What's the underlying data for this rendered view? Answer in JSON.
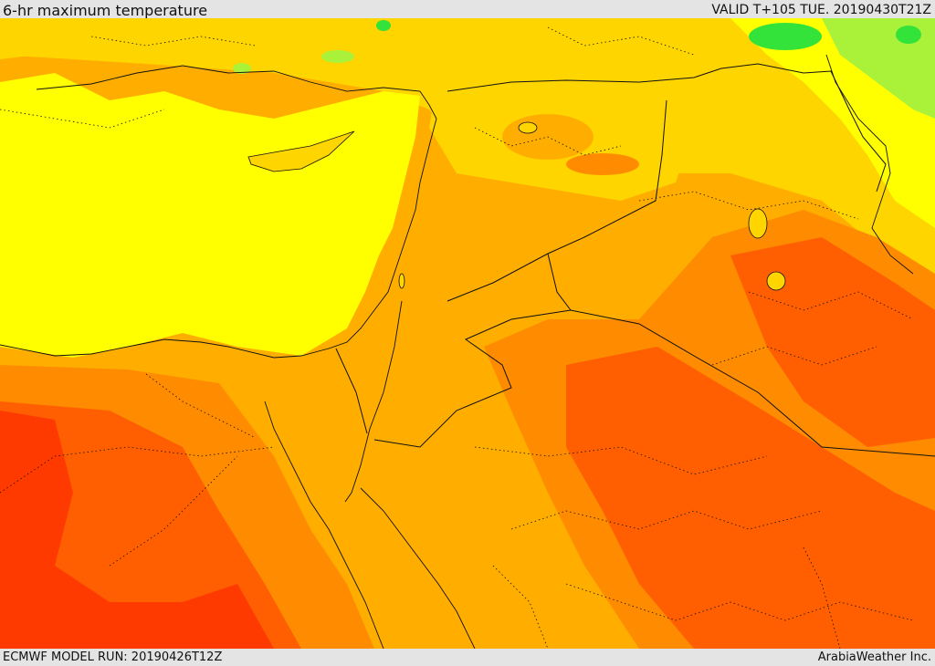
{
  "header": {
    "title": "6-hr maximum temperature",
    "valid_time": "VALID T+105 TUE. 20190430T21Z"
  },
  "footer": {
    "model_run": "ECMWF MODEL RUN: 20190426T12Z",
    "provider": "ArabiaWeather Inc."
  },
  "colors": {
    "very_cool": "#33e33a",
    "cool": "#aaf23a",
    "mild": "#ffff00",
    "warm": "#ffd500",
    "warmer": "#ffae00",
    "hot": "#ff8c00",
    "very_hot": "#ff5f00",
    "extreme": "#ff3a00",
    "border_line": "#111111"
  }
}
